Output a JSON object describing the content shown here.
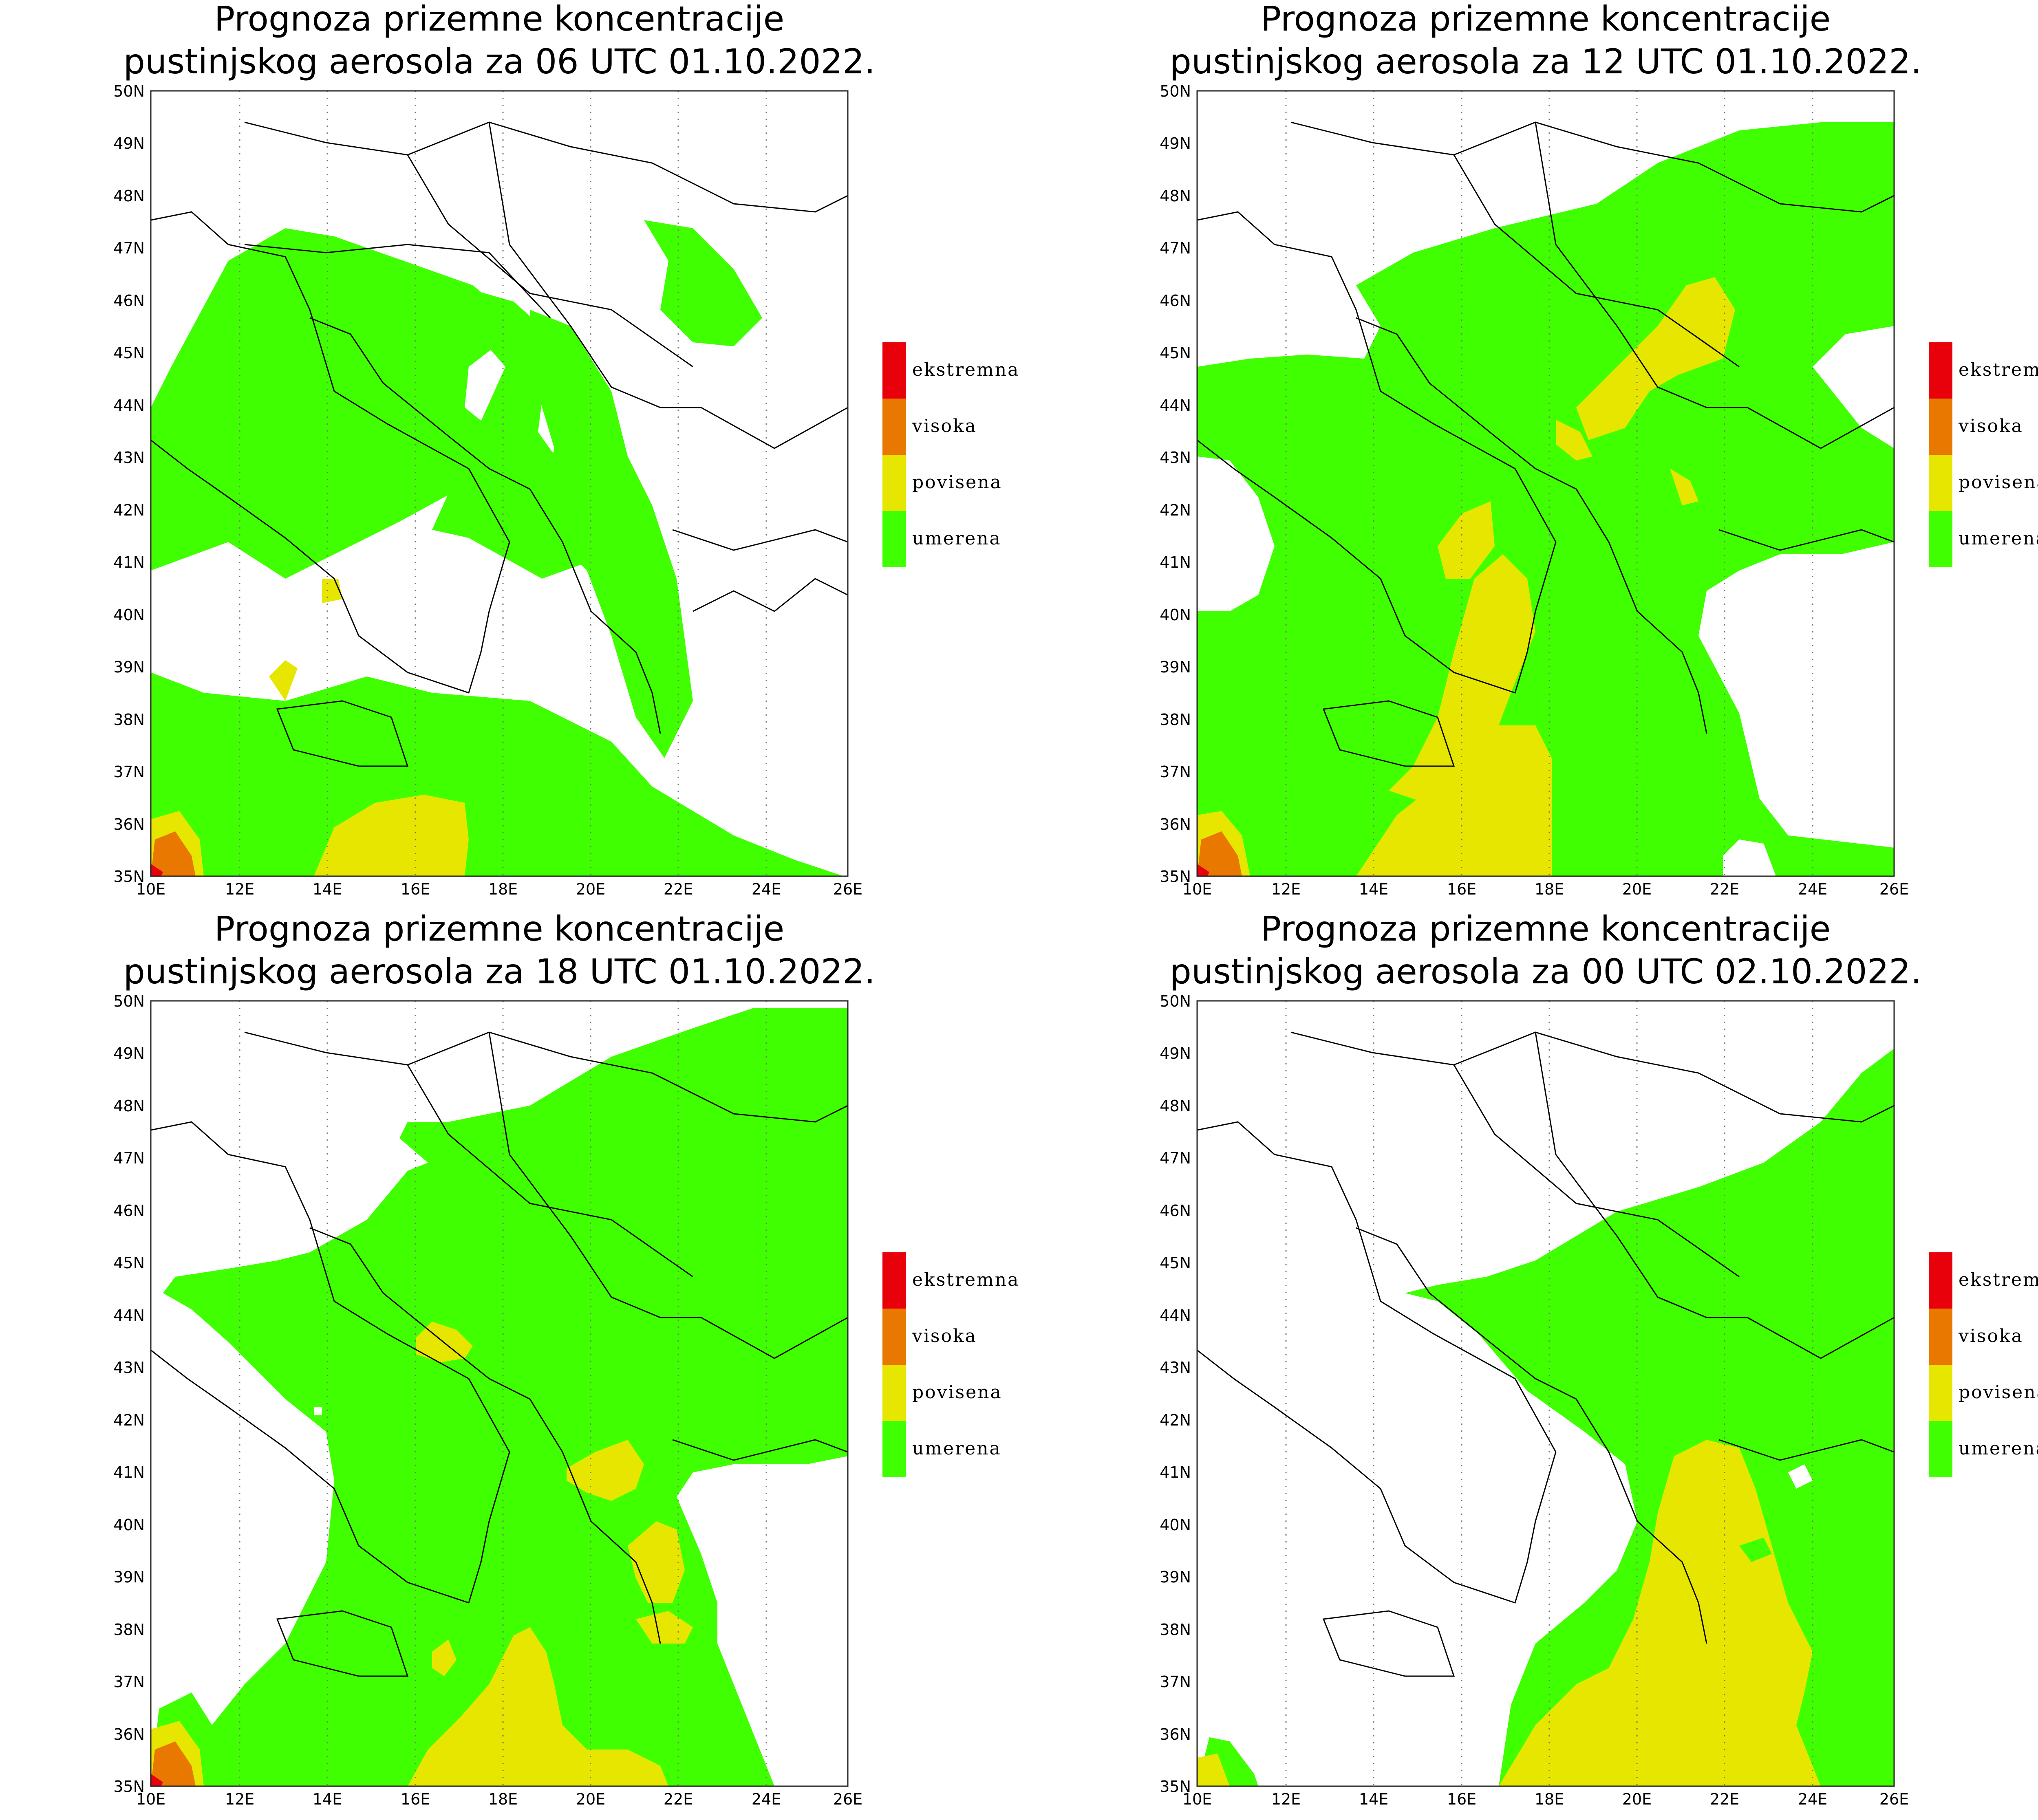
{
  "panels": [
    {
      "title_line1": "Prognoza prizemne koncentracije",
      "title_line2": "pustinjskog aerosola za 06 UTC 01.10.2022."
    },
    {
      "title_line1": "Prognoza prizemne koncentracije",
      "title_line2": "pustinjskog aerosola za 12 UTC 01.10.2022."
    },
    {
      "title_line1": "Prognoza prizemne koncentracije",
      "title_line2": "pustinjskog aerosola za 18 UTC 01.10.2022."
    },
    {
      "title_line1": "Prognoza prizemne koncentracije",
      "title_line2": "pustinjskog aerosola za 00 UTC 02.10.2022."
    }
  ],
  "axes": {
    "lat_labels": [
      "50N",
      "49N",
      "48N",
      "47N",
      "46N",
      "45N",
      "44N",
      "43N",
      "42N",
      "41N",
      "40N",
      "39N",
      "38N",
      "37N",
      "36N",
      "35N"
    ],
    "lon_labels": [
      "10E",
      "12E",
      "14E",
      "16E",
      "18E",
      "20E",
      "22E",
      "24E",
      "26E"
    ]
  },
  "legend": [
    {
      "label": "ekstremna",
      "color": "#e8000b"
    },
    {
      "label": "visoka",
      "color": "#e87800"
    },
    {
      "label": "povisena",
      "color": "#e6e600"
    },
    {
      "label": "umerena",
      "color": "#40ff00"
    }
  ],
  "colors": {
    "umerena": "#40ff00",
    "povisena": "#e6e600",
    "visoka": "#e87800",
    "ekstremna": "#e8000b"
  }
}
